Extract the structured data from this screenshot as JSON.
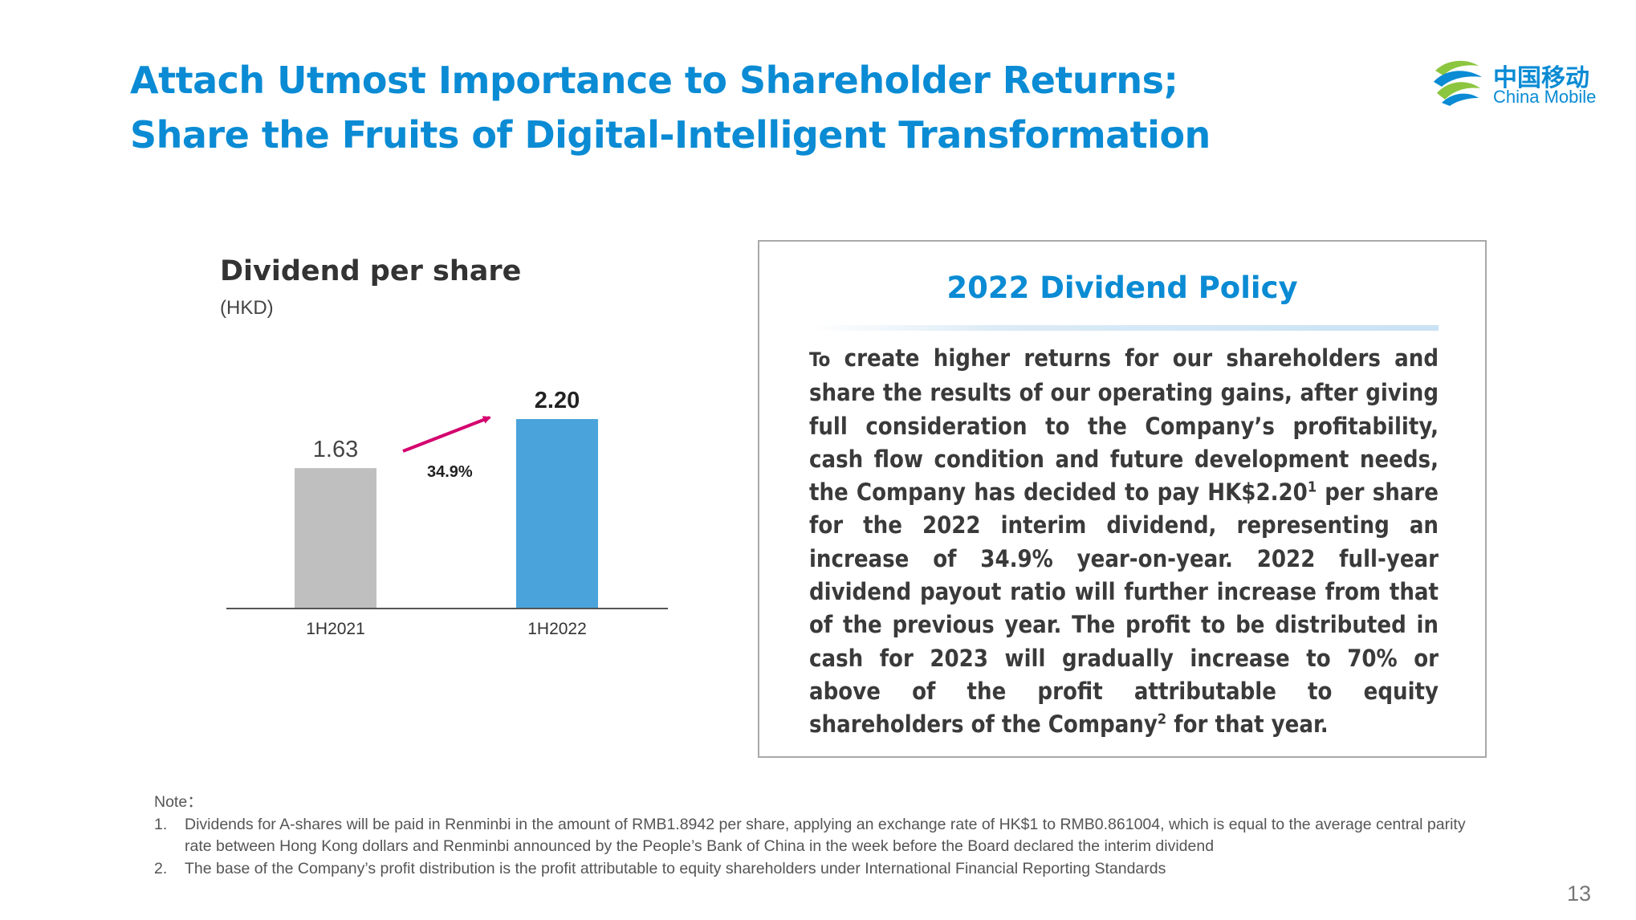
{
  "header": {
    "title_line1": "Attach Utmost Importance to Shareholder Returns;",
    "title_line2": "Share the Fruits of Digital-Intelligent Transformation"
  },
  "logo": {
    "cn": "中国移动",
    "en": "China Mobile"
  },
  "chart_data": {
    "type": "bar",
    "title": "Dividend per share",
    "subtitle": "(HKD)",
    "categories": [
      "1H2021",
      "1H2022"
    ],
    "values": [
      1.63,
      2.2
    ],
    "value_labels": [
      "1.63",
      "2.20"
    ],
    "bar_colors": [
      "#bfbfbf",
      "#4aa3da"
    ],
    "annotation": {
      "text": "34.9%",
      "arrow_color": "#d4006e"
    },
    "ylim": [
      0,
      2.2
    ]
  },
  "policy": {
    "title": "2022 Dividend Policy",
    "lead": "To",
    "text_a": "create higher returns for our shareholders and share the results of our operating gains, after giving full consideration to the Company’s profitability, cash flow condition and future development needs, the Company has decided to pay HK$2.20",
    "sup1": "1",
    "text_b": " per share for the 2022 interim dividend, representing an increase of 34.9% year-on-year. 2022 full-year dividend payout ratio will further increase from that of the previous year. The profit to be distributed in cash for 2023 will gradually increase to 70% or above of the profit attributable to equity shareholders of the Company",
    "sup2": "2",
    "text_c": " for that year."
  },
  "notes": {
    "heading": "Note：",
    "items": [
      {
        "num": "1.",
        "text": "Dividends for A-shares will be paid in Renminbi in the amount of RMB1.8942 per share, applying an exchange rate of HK$1 to RMB0.861004, which is equal to the average central parity rate between Hong Kong dollars and Renminbi announced by the People’s Bank of China in the week before the Board declared the interim dividend"
      },
      {
        "num": "2.",
        "text": "The base of the Company’s profit distribution is the profit attributable to equity shareholders under International Financial Reporting Standards"
      }
    ]
  },
  "page_number": "13",
  "colors": {
    "accent": "#0a8bd4",
    "policy_border": "#a9a9a9"
  }
}
